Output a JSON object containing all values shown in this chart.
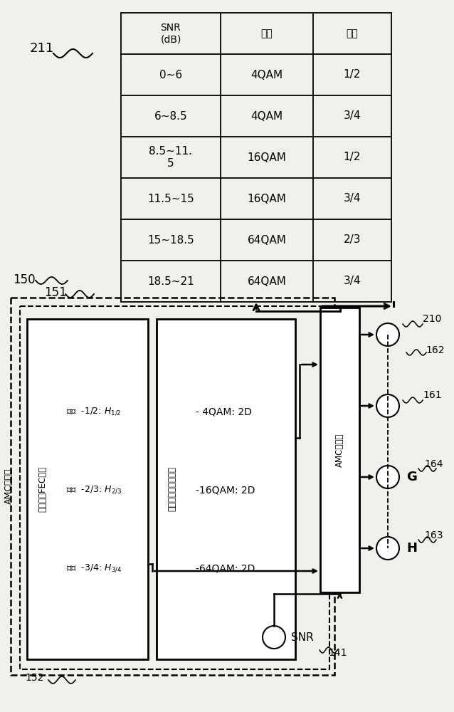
{
  "bg_color": "#f0f0ec",
  "snr_col": [
    "SNR\n(dB)",
    "0~6",
    "6~8.5",
    "8.5~11.\n5",
    "11.5~15",
    "15~18.5",
    "18.5~21"
  ],
  "mod_col": [
    "调制",
    "4QAM",
    "4QAM",
    "16QAM",
    "16QAM",
    "64QAM",
    "64QAM"
  ],
  "code_col": [
    "编码",
    "1/2",
    "3/4",
    "1/2",
    "3/4",
    "2/3",
    "3/4"
  ],
  "label_211": "211",
  "label_151": "151",
  "label_150": "150",
  "label_152": "152",
  "label_141": "141",
  "label_162": "162",
  "label_161": "161",
  "label_164": "164",
  "label_163": "163",
  "label_210": "210",
  "fec_title": "可变速率FEC码：",
  "fec_line1": "速率  -1/2: $\\mathit{H}_{1/2}$",
  "fec_line2": "速率  -2/3: $\\mathit{H}_{2/3}$",
  "fec_line3": "速率  -3/4: $\\mathit{H}_{3/4}$",
  "mod_title": "可变阶数调制格式：",
  "mod_line1": "- 4QAM: 2D",
  "mod_line2": "-16QAM: 2D",
  "mod_line3": "-64QAM: 2D",
  "sel_label": "AMC选择器",
  "amc_ctrl": "AMC控制器",
  "snr_label": "SNR"
}
